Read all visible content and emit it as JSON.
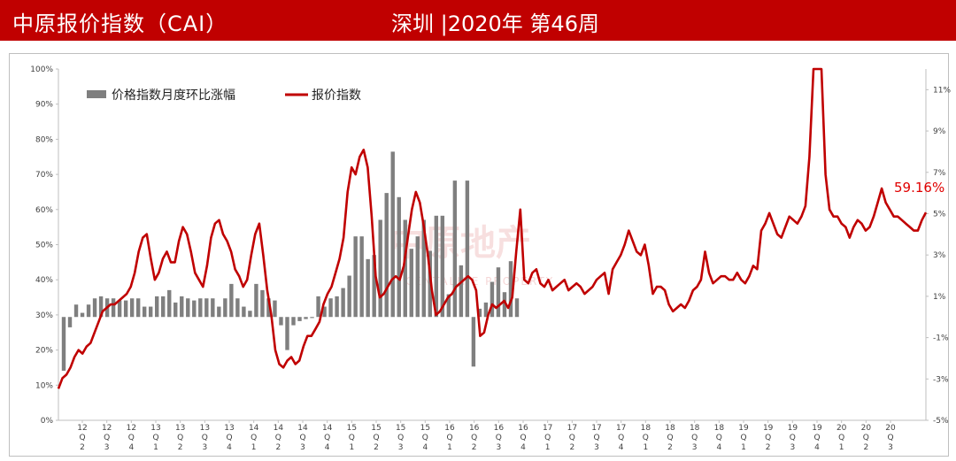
{
  "header": {
    "title": "中原报价指数（CAI）",
    "subtitle": "深圳 |2020年  第46周",
    "bg_color": "#c00000"
  },
  "watermark": {
    "main": "中原地产",
    "sub": "CENTALINE PROPERTY"
  },
  "chart_data": {
    "type": "bar+line",
    "title": "",
    "legend": [
      {
        "name": "价格指数月度环比涨幅",
        "color": "#7f7f7f",
        "kind": "bar"
      },
      {
        "name": "报价指数",
        "color": "#c00000",
        "kind": "line"
      }
    ],
    "legend_position": "top-left",
    "left_axis": {
      "range": [
        0,
        100
      ],
      "ticks": [
        "0%",
        "10%",
        "20%",
        "30%",
        "40%",
        "50%",
        "60%",
        "70%",
        "80%",
        "90%",
        "100%"
      ]
    },
    "right_axis": {
      "range": [
        -5,
        12
      ],
      "ticks": [
        "-5%",
        "-3%",
        "-1%",
        "1%",
        "3%",
        "5%",
        "7%",
        "9%",
        "11%"
      ]
    },
    "x_quarters": [
      [
        "12",
        "Q",
        "2"
      ],
      [
        "12",
        "Q",
        "3"
      ],
      [
        "12",
        "Q",
        "4"
      ],
      [
        "13",
        "Q",
        "1"
      ],
      [
        "13",
        "Q",
        "2"
      ],
      [
        "13",
        "Q",
        "3"
      ],
      [
        "13",
        "Q",
        "4"
      ],
      [
        "14",
        "Q",
        "1"
      ],
      [
        "14",
        "Q",
        "2"
      ],
      [
        "14",
        "Q",
        "3"
      ],
      [
        "14",
        "Q",
        "4"
      ],
      [
        "15",
        "Q",
        "1"
      ],
      [
        "15",
        "Q",
        "2"
      ],
      [
        "15",
        "Q",
        "3"
      ],
      [
        "15",
        "Q",
        "4"
      ],
      [
        "16",
        "Q",
        "1"
      ],
      [
        "16",
        "Q",
        "2"
      ],
      [
        "16",
        "Q",
        "3"
      ],
      [
        "16",
        "Q",
        "4"
      ],
      [
        "17",
        "Q",
        "1"
      ],
      [
        "17",
        "Q",
        "2"
      ],
      [
        "17",
        "Q",
        "3"
      ],
      [
        "17",
        "Q",
        "4"
      ],
      [
        "18",
        "Q",
        "1"
      ],
      [
        "18",
        "Q",
        "2"
      ],
      [
        "18",
        "Q",
        "3"
      ],
      [
        "18",
        "Q",
        "4"
      ],
      [
        "19",
        "Q",
        "1"
      ],
      [
        "19",
        "Q",
        "2"
      ],
      [
        "19",
        "Q",
        "3"
      ],
      [
        "19",
        "Q",
        "4"
      ],
      [
        "20",
        "Q",
        "1"
      ],
      [
        "20",
        "Q",
        "2"
      ],
      [
        "20",
        "Q",
        "3"
      ]
    ],
    "bar_series": {
      "name": "价格指数月度环比涨幅",
      "unit": "% (right axis)",
      "values": [
        -2.6,
        -0.5,
        0.6,
        0.2,
        0.6,
        0.9,
        1.0,
        0.9,
        0.9,
        0.8,
        0.8,
        0.9,
        0.9,
        0.5,
        0.5,
        1.0,
        1.0,
        1.3,
        0.7,
        1.0,
        0.9,
        0.8,
        0.9,
        0.9,
        0.9,
        0.5,
        0.9,
        1.6,
        0.9,
        0.5,
        0.3,
        1.6,
        1.3,
        0.9,
        0.8,
        -0.4,
        -1.6,
        -0.4,
        -0.2,
        -0.1,
        -0.05,
        1.0,
        0.5,
        0.9,
        1.0,
        1.4,
        2.0,
        3.9,
        3.9,
        2.8,
        3.0,
        4.7,
        6.0,
        8.0,
        5.8,
        4.7,
        3.3,
        3.9,
        4.7,
        3.2,
        4.9,
        4.9,
        1.1,
        6.6,
        2.5,
        6.6,
        -2.4,
        0.4,
        0.7,
        1.7,
        2.4,
        1.2,
        2.7,
        0.9
      ]
    },
    "line_series": {
      "name": "报价指数",
      "unit": "% (left axis)",
      "values": [
        9,
        12,
        13,
        15,
        18,
        20,
        19,
        21,
        22,
        25,
        28,
        31,
        32,
        33,
        33,
        34,
        35,
        36,
        38,
        42,
        48,
        52,
        53,
        46,
        40,
        42,
        46,
        48,
        45,
        45,
        51,
        55,
        53,
        48,
        42,
        40,
        38,
        44,
        52,
        56,
        57,
        53,
        51,
        48,
        43,
        41,
        38,
        40,
        47,
        53,
        56,
        47,
        37,
        30,
        20,
        16,
        15,
        17,
        18,
        16,
        17,
        21,
        24,
        24,
        26,
        28,
        33,
        36,
        38,
        42,
        46,
        52,
        65,
        72,
        70,
        75,
        77,
        72,
        58,
        41,
        35,
        36,
        38,
        40,
        41,
        40,
        44,
        52,
        60,
        65,
        62,
        55,
        47,
        37,
        30,
        31,
        33,
        35,
        36,
        38,
        39,
        40,
        41,
        40,
        37,
        24,
        25,
        30,
        33,
        32,
        33,
        34,
        32,
        35,
        48,
        60,
        40,
        39,
        42,
        43,
        39,
        38,
        40,
        37,
        38,
        39,
        40,
        37,
        38,
        39,
        38,
        36,
        37,
        38,
        40,
        41,
        42,
        36,
        43,
        45,
        47,
        50,
        54,
        51,
        48,
        47,
        50,
        44,
        36,
        38,
        38,
        37,
        33,
        31,
        32,
        33,
        32,
        34,
        37,
        38,
        40,
        48,
        42,
        39,
        40,
        41,
        41,
        40,
        40,
        42,
        40,
        39,
        41,
        44,
        43,
        54,
        56,
        59,
        56,
        53,
        52,
        55,
        58,
        57,
        56,
        58,
        61,
        75,
        100,
        100,
        100,
        70,
        60,
        58,
        58,
        56,
        55,
        52,
        55,
        57,
        56,
        54,
        55,
        58,
        62,
        66,
        62,
        60,
        58,
        58,
        57,
        56,
        55,
        54,
        54,
        57,
        59.16
      ]
    },
    "latest_label": "59.16%"
  }
}
